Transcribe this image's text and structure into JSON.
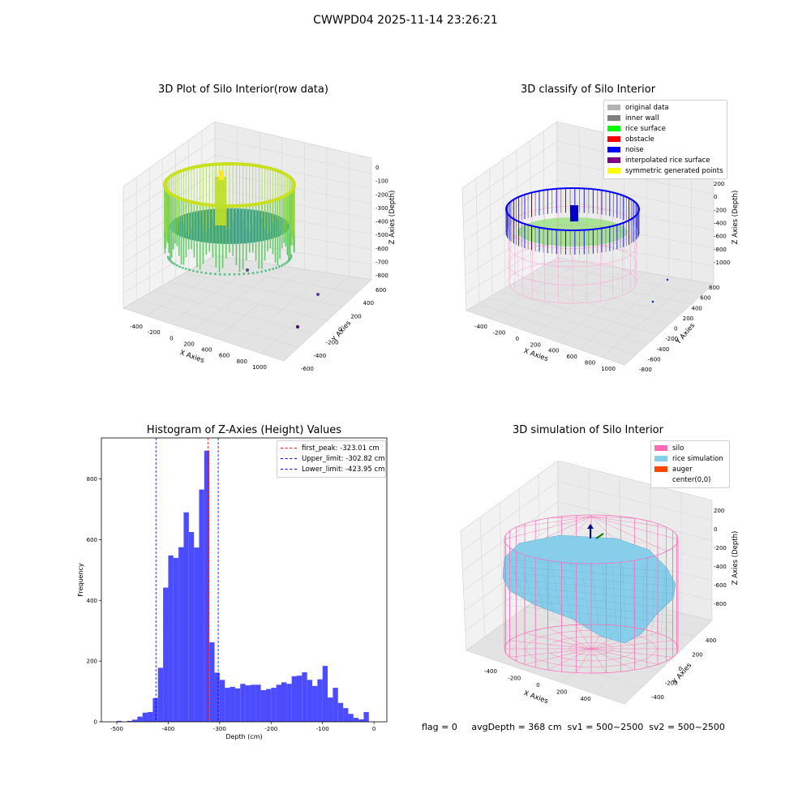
{
  "figure": {
    "suptitle": "CWWPD04 2025-11-14 23:26:21",
    "footer": "flag = 0     avgDepth = 368 cm  sv1 = 500~2500  sv2 = 500~2500"
  },
  "chart_data": [
    {
      "type": "scatter",
      "projection": "3d",
      "title": "3D Plot of Silo Interior(row data)",
      "xlabel": "X Axies",
      "ylabel": "Y Axies",
      "zlabel": "Z Axies (Depth)",
      "x_ticks": [
        "-400",
        "-200",
        "0",
        "200",
        "400",
        "600",
        "800",
        "1000"
      ],
      "y_ticks": [
        "600",
        "400",
        "200",
        "0",
        "-200",
        "-400",
        "-600"
      ],
      "z_ticks": [
        "0",
        "-100",
        "-200",
        "-300",
        "-400",
        "-500",
        "-600",
        "-700",
        "-800"
      ],
      "colormap": "viridis",
      "grid": true
    },
    {
      "type": "scatter",
      "projection": "3d",
      "title": "3D classify of Silo Interior",
      "xlabel": "X Axies",
      "ylabel": "Y Axies",
      "zlabel": "Z Axies (Depth)",
      "x_ticks": [
        "-400",
        "-200",
        "0",
        "200",
        "400",
        "600",
        "800",
        "1000"
      ],
      "y_ticks": [
        "800",
        "600",
        "400",
        "200",
        "0",
        "-200",
        "-400",
        "-600",
        "-800"
      ],
      "z_ticks": [
        "200",
        "0",
        "-200",
        "-400",
        "-600",
        "-800",
        "-1000"
      ],
      "legend": {
        "placement": "top-right",
        "entries": [
          {
            "label": "original data",
            "color": "#b3b3b3"
          },
          {
            "label": "inner wall",
            "color": "#808080"
          },
          {
            "label": "rice surface",
            "color": "#00ff00"
          },
          {
            "label": "obstacle",
            "color": "#ff0000"
          },
          {
            "label": "noise",
            "color": "#0000ff"
          },
          {
            "label": "interpolated rice surface",
            "color": "#800080"
          },
          {
            "label": "symmetric generated points",
            "color": "#ffff00"
          }
        ]
      },
      "grid": true
    },
    {
      "type": "bar",
      "subtype": "histogram",
      "title": "Histogram of Z-Axies (Height) Values",
      "xlabel": "Depth (cm)",
      "ylabel": "Frequency",
      "xlim": [
        -530,
        25
      ],
      "ylim": [
        0,
        935
      ],
      "x_ticks": [
        -500,
        -400,
        -300,
        -200,
        -100,
        0
      ],
      "y_ticks": [
        0,
        200,
        400,
        600,
        800
      ],
      "bin_width": 10,
      "bar_color": "#4b4bff",
      "bins": [
        {
          "start": -510,
          "count": 0
        },
        {
          "start": -500,
          "count": 3
        },
        {
          "start": -490,
          "count": 0
        },
        {
          "start": -480,
          "count": 3
        },
        {
          "start": -470,
          "count": 7
        },
        {
          "start": -460,
          "count": 17
        },
        {
          "start": -450,
          "count": 30
        },
        {
          "start": -440,
          "count": 32
        },
        {
          "start": -430,
          "count": 78
        },
        {
          "start": -420,
          "count": 178
        },
        {
          "start": -410,
          "count": 442
        },
        {
          "start": -400,
          "count": 548
        },
        {
          "start": -390,
          "count": 540
        },
        {
          "start": -380,
          "count": 575
        },
        {
          "start": -370,
          "count": 690
        },
        {
          "start": -360,
          "count": 625
        },
        {
          "start": -350,
          "count": 574
        },
        {
          "start": -340,
          "count": 765
        },
        {
          "start": -330,
          "count": 893
        },
        {
          "start": -320,
          "count": 262
        },
        {
          "start": -310,
          "count": 162
        },
        {
          "start": -300,
          "count": 138
        },
        {
          "start": -290,
          "count": 112
        },
        {
          "start": -280,
          "count": 115
        },
        {
          "start": -270,
          "count": 110
        },
        {
          "start": -260,
          "count": 125
        },
        {
          "start": -250,
          "count": 120
        },
        {
          "start": -240,
          "count": 122
        },
        {
          "start": -230,
          "count": 122
        },
        {
          "start": -220,
          "count": 104
        },
        {
          "start": -210,
          "count": 108
        },
        {
          "start": -200,
          "count": 112
        },
        {
          "start": -190,
          "count": 122
        },
        {
          "start": -180,
          "count": 130
        },
        {
          "start": -170,
          "count": 125
        },
        {
          "start": -160,
          "count": 150
        },
        {
          "start": -150,
          "count": 152
        },
        {
          "start": -140,
          "count": 163
        },
        {
          "start": -130,
          "count": 138
        },
        {
          "start": -120,
          "count": 118
        },
        {
          "start": -110,
          "count": 140
        },
        {
          "start": -100,
          "count": 184
        },
        {
          "start": -90,
          "count": 80
        },
        {
          "start": -80,
          "count": 112
        },
        {
          "start": -70,
          "count": 62
        },
        {
          "start": -60,
          "count": 45
        },
        {
          "start": -50,
          "count": 26
        },
        {
          "start": -40,
          "count": 13
        },
        {
          "start": -30,
          "count": 8
        },
        {
          "start": -20,
          "count": 32
        }
      ],
      "vlines": [
        {
          "label": "first_peak: -323.01 cm",
          "value": -323.01,
          "color": "#ff0000"
        },
        {
          "label": "Upper_limit: -302.82 cm",
          "value": -302.82,
          "color": "#0000ff"
        },
        {
          "label": "Lower_limit: -423.95 cm",
          "value": -423.95,
          "color": "#0000ff"
        }
      ],
      "legend_placement": "top-right"
    },
    {
      "type": "area",
      "projection": "3d",
      "title": "3D simulation of Silo Interior",
      "xlabel": "X Axies",
      "ylabel": "Y Axies",
      "zlabel": "Z Axies (Depth)",
      "x_ticks": [
        "-400",
        "-200",
        "0",
        "200",
        "400"
      ],
      "y_ticks": [
        "400",
        "200",
        "0",
        "-200",
        "-400"
      ],
      "z_ticks": [
        "200",
        "0",
        "-200",
        "-400",
        "-600",
        "-800"
      ],
      "legend": {
        "placement": "top-right",
        "entries": [
          {
            "label": "silo",
            "color": "#ff69b4"
          },
          {
            "label": "rice simulation",
            "color": "#87ceeb"
          },
          {
            "label": "auger",
            "color": "#ff4500"
          },
          {
            "label": "center(0,0)",
            "color": "#ffffff"
          }
        ]
      },
      "grid": true
    }
  ]
}
